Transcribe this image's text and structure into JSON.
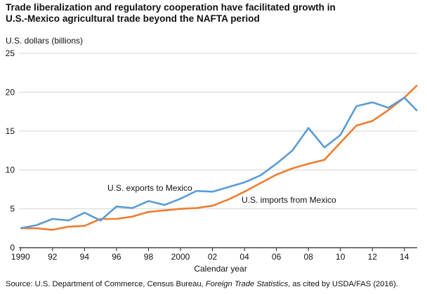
{
  "chart_data": {
    "type": "line",
    "title_line1": "Trade liberalization and regulatory cooperation have facilitated growth in",
    "title_line2": "U.S.-Mexico agricultural trade beyond the NAFTA period",
    "ylabel": "U.S. dollars (billions)",
    "xlabel": "Calendar year",
    "ylim": [
      0,
      25
    ],
    "yticks": [
      0,
      5,
      10,
      15,
      20,
      25
    ],
    "xlim": [
      1990,
      2014.8
    ],
    "xtick_values": [
      1990,
      1992,
      1994,
      1996,
      1998,
      2000,
      2002,
      2004,
      2006,
      2008,
      2010,
      2012,
      2014
    ],
    "xtick_labels": [
      "1990",
      "92",
      "94",
      "96",
      "98",
      "2000",
      "02",
      "04",
      "06",
      "08",
      "10",
      "12",
      "14"
    ],
    "grid": "horizontal",
    "x": [
      1990,
      1991,
      1992,
      1993,
      1994,
      1995,
      1996,
      1997,
      1998,
      1999,
      2000,
      2001,
      2002,
      2003,
      2004,
      2005,
      2006,
      2007,
      2008,
      2009,
      2010,
      2011,
      2012,
      2013,
      2014,
      2014.8
    ],
    "series": [
      {
        "name": "U.S. exports to Mexico",
        "color": "#5b9bd5",
        "values": [
          2.5,
          2.9,
          3.7,
          3.5,
          4.5,
          3.5,
          5.3,
          5.1,
          6.0,
          5.5,
          6.3,
          7.3,
          7.2,
          7.8,
          8.4,
          9.3,
          10.8,
          12.5,
          15.4,
          12.9,
          14.5,
          18.2,
          18.7,
          18.0,
          19.3,
          17.6
        ]
      },
      {
        "name": "U.S. imports from Mexico",
        "color": "#ed7d31",
        "values": [
          2.5,
          2.5,
          2.3,
          2.7,
          2.8,
          3.7,
          3.7,
          4.0,
          4.6,
          4.8,
          5.0,
          5.1,
          5.4,
          6.2,
          7.2,
          8.3,
          9.4,
          10.2,
          10.8,
          11.3,
          13.5,
          15.7,
          16.3,
          17.7,
          19.3,
          20.9
        ]
      }
    ],
    "source_prefix": "Source:  U.S. Department of Commerce, Census Bureau, ",
    "source_italic": "Foreign Trade Statistics",
    "source_suffix": ", as cited by USDA/FAS (2016)."
  }
}
